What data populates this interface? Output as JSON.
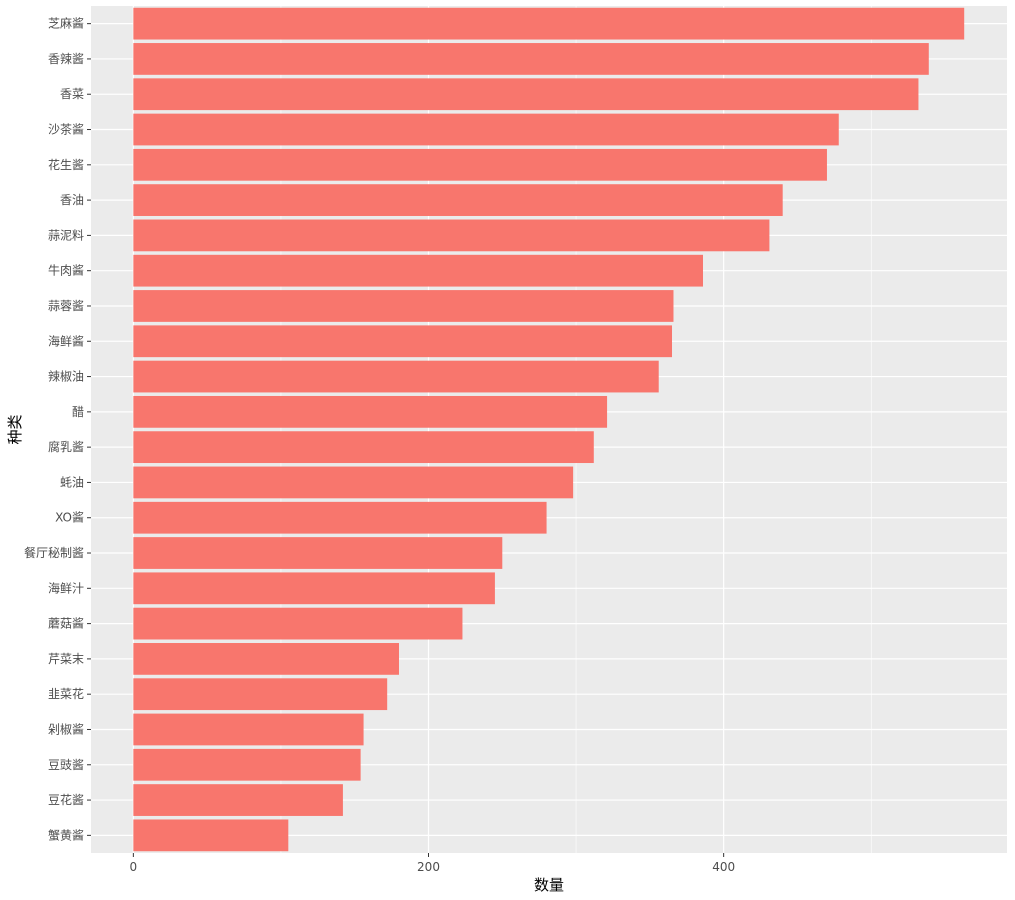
{
  "chart_data": {
    "type": "bar",
    "orientation": "horizontal",
    "xlabel": "数量",
    "ylabel": "种类",
    "categories": [
      "芝麻酱",
      "香辣酱",
      "香菜",
      "沙茶酱",
      "花生酱",
      "香油",
      "蒜泥料",
      "牛肉酱",
      "蒜蓉酱",
      "海鲜酱",
      "辣椒油",
      "醋",
      "腐乳酱",
      "蚝油",
      "XO酱",
      "餐厅秘制酱",
      "海鲜汁",
      "蘑菇酱",
      "芹菜末",
      "韭菜花",
      "剁椒酱",
      "豆豉酱",
      "豆花酱",
      "蟹黄酱"
    ],
    "values": [
      563,
      539,
      532,
      478,
      470,
      440,
      431,
      386,
      366,
      365,
      356,
      321,
      312,
      298,
      280,
      250,
      245,
      223,
      180,
      172,
      156,
      154,
      142,
      105
    ],
    "xlim": [
      -28.7,
      592
    ],
    "xticks": [
      0,
      200,
      400
    ],
    "bar_color": "#F8766D",
    "panel_background": "#EBEBEB",
    "grid": true
  }
}
